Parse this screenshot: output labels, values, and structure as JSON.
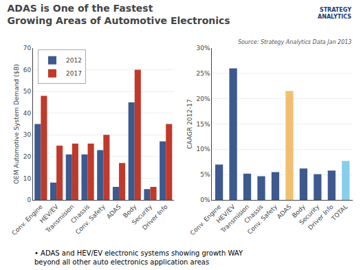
{
  "chart_data": [
    {
      "type": "bar",
      "title": "ADAS is One of the Fastest\nGrowing Areas of Automotive Electronics",
      "annotations": [
        "STRATEGY\nANALYTICS",
        "• ADAS and HEV/EV electronic systems showing growth WAY\nbeyond all other auto electronics application areas"
      ],
      "categories": [
        "Conv. Engine",
        "HEV/EV",
        "Transmision",
        "Chassis",
        "Conv. Safety",
        "ADAS",
        "Body",
        "Security",
        "Driver Info"
      ],
      "series": [
        {
          "name": "2012",
          "color": "#3d5a8e",
          "values": [
            35,
            8,
            21,
            21,
            23,
            6,
            45,
            5,
            27
          ]
        },
        {
          "name": "2017",
          "color": "#c0392b",
          "values": [
            48,
            25,
            26,
            26,
            30,
            17,
            60,
            6,
            35
          ]
        }
      ],
      "ylabel": "OEM Automotive System Demand ($B)",
      "ylim": [
        0,
        70
      ],
      "yticks": [
        0,
        10,
        20,
        30,
        40,
        50,
        60,
        70
      ],
      "grid": true,
      "legend": "upper left"
    },
    {
      "type": "bar",
      "annotations": [
        "Source: Strategy Analytics Data Jan 2013"
      ],
      "categories": [
        "Conv. Engine",
        "HEV/EV",
        "Transmision",
        "Chassis",
        "Conv. Safety",
        "ADAS",
        "Body",
        "Security",
        "Driver Info",
        "TOTAL"
      ],
      "values": [
        0.07,
        0.26,
        0.052,
        0.047,
        0.055,
        0.215,
        0.062,
        0.051,
        0.058,
        0.077
      ],
      "colors": [
        "#3d5a8e",
        "#3d5a8e",
        "#3d5a8e",
        "#3d5a8e",
        "#3d5a8e",
        "#f0c070",
        "#3d5a8e",
        "#3d5a8e",
        "#3d5a8e",
        "#87ceeb"
      ],
      "ylabel": "CAAGR 2012-17",
      "ylim": [
        0,
        0.3
      ],
      "yticks": [
        {
          "value": 0,
          "label": "0%"
        },
        {
          "value": 0.05,
          "label": "5%"
        },
        {
          "value": 0.1,
          "label": "10%"
        },
        {
          "value": 0.15,
          "label": "15%"
        },
        {
          "value": 0.2,
          "label": "20%"
        },
        {
          "value": 0.25,
          "label": "25%"
        },
        {
          "value": 0.3,
          "label": "30%"
        }
      ],
      "grid": true
    }
  ]
}
